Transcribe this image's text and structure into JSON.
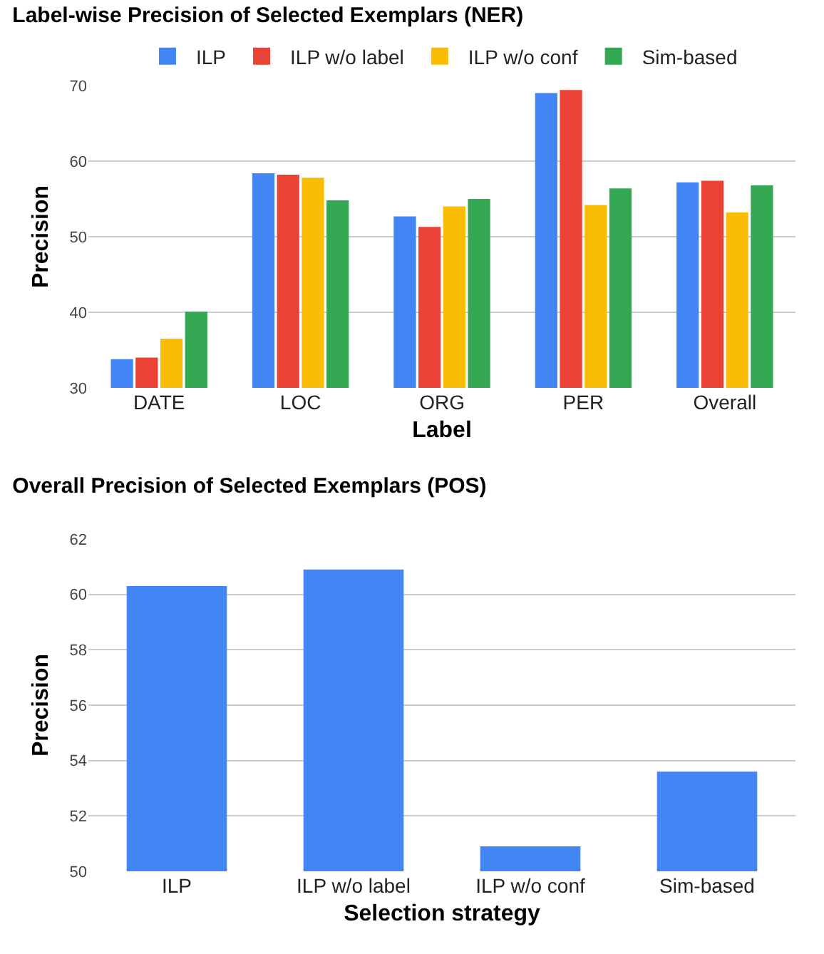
{
  "chart_data": [
    {
      "type": "bar",
      "title": "Label-wise Precision of Selected Exemplars (NER)",
      "xlabel": "Label",
      "ylabel": "Precision",
      "categories": [
        "DATE",
        "LOC",
        "ORG",
        "PER",
        "Overall"
      ],
      "series": [
        {
          "name": "ILP",
          "color": "#4285f4",
          "values": [
            33.8,
            58.4,
            52.7,
            69.0,
            57.2
          ]
        },
        {
          "name": "ILP w/o label",
          "color": "#ea4335",
          "values": [
            34.0,
            58.2,
            51.3,
            69.4,
            57.4
          ]
        },
        {
          "name": "ILP w/o conf",
          "color": "#fbbc04",
          "values": [
            36.5,
            57.8,
            54.0,
            54.2,
            53.2
          ]
        },
        {
          "name": "Sim-based",
          "color": "#34a853",
          "values": [
            40.1,
            54.8,
            55.0,
            56.4,
            56.8
          ]
        }
      ],
      "ylim": [
        30,
        70
      ],
      "yticks": [
        30,
        40,
        50,
        60,
        70
      ],
      "grid": "y",
      "legend": "top"
    },
    {
      "type": "bar",
      "title": "Overall Precision of Selected Exemplars (POS)",
      "xlabel": "Selection strategy",
      "ylabel": "Precision",
      "categories": [
        "ILP",
        "ILP w/o label",
        "ILP w/o conf",
        "Sim-based"
      ],
      "values": [
        60.3,
        60.9,
        50.9,
        53.6
      ],
      "color": "#4285f4",
      "ylim": [
        50,
        62
      ],
      "yticks": [
        50,
        52,
        54,
        56,
        58,
        60,
        62
      ],
      "grid": "y"
    }
  ]
}
